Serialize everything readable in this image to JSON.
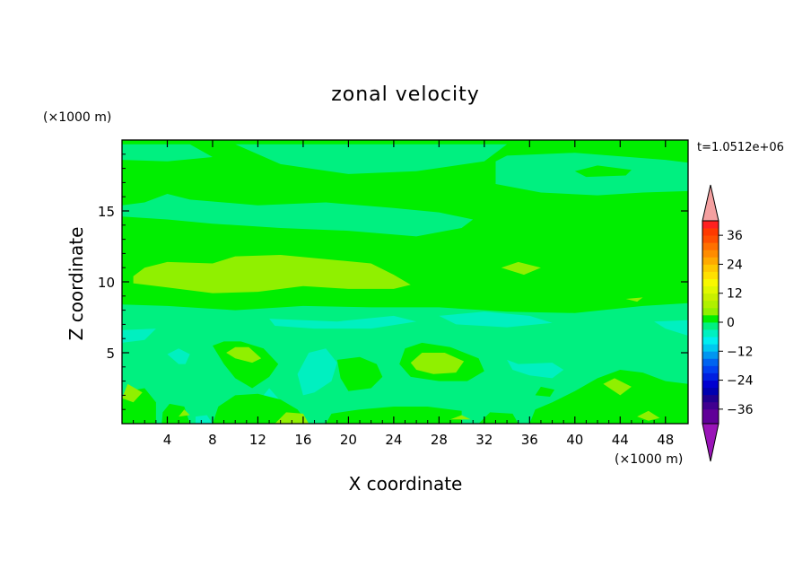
{
  "chart_data": {
    "type": "heatmap",
    "title": "zonal velocity",
    "xlabel": "X coordinate",
    "ylabel": "Z coordinate",
    "x_unit": "(×1000 m)",
    "y_unit": "(×1000 m)",
    "time_label": "t=1.0512e+06",
    "xlim": [
      0,
      50
    ],
    "ylim": [
      0,
      20
    ],
    "x_ticks": [
      4,
      8,
      12,
      16,
      20,
      24,
      28,
      32,
      36,
      40,
      44,
      48
    ],
    "y_ticks": [
      5,
      10,
      15
    ],
    "colorbar": {
      "min": -42,
      "max": 42,
      "step": 3,
      "tick_values": [
        36,
        24,
        12,
        0,
        -12,
        -24,
        -36
      ],
      "tick_labels": [
        "36",
        "24",
        "12",
        "0",
        "−12",
        "−24",
        "−36"
      ],
      "extend": "both"
    },
    "regions": [
      {
        "level": 0,
        "points": [
          [
            0,
            19.7
          ],
          [
            50,
            19.7
          ],
          [
            50,
            16
          ],
          [
            42,
            16.5
          ],
          [
            36,
            16.3
          ],
          [
            30,
            16.7
          ],
          [
            22,
            17.5
          ],
          [
            16,
            18.6
          ],
          [
            8,
            18.7
          ],
          [
            0,
            18.5
          ]
        ]
      },
      {
        "level": -3,
        "points": [
          [
            0,
            19.7
          ],
          [
            6,
            19.7
          ],
          [
            8,
            18.8
          ],
          [
            4,
            18.5
          ],
          [
            0,
            18.6
          ]
        ]
      },
      {
        "level": -3,
        "points": [
          [
            10,
            19.7
          ],
          [
            34,
            19.7
          ],
          [
            32,
            18.5
          ],
          [
            26,
            17.8
          ],
          [
            20,
            17.6
          ],
          [
            14,
            18.3
          ]
        ]
      },
      {
        "level": -3,
        "points": [
          [
            33,
            18.5
          ],
          [
            34,
            18.9
          ],
          [
            40,
            19.1
          ],
          [
            48,
            18.6
          ],
          [
            50,
            18.4
          ],
          [
            50,
            16.4
          ],
          [
            46,
            16.3
          ],
          [
            42,
            16.1
          ],
          [
            37,
            16.3
          ],
          [
            33,
            16.9
          ]
        ]
      },
      {
        "level": 0,
        "points": [
          [
            40,
            17.8
          ],
          [
            42,
            18.2
          ],
          [
            45,
            17.9
          ],
          [
            44.5,
            17.5
          ],
          [
            41,
            17.4
          ]
        ]
      },
      {
        "level": -3,
        "points": [
          [
            0,
            14.6
          ],
          [
            0,
            15.4
          ],
          [
            2,
            15.6
          ],
          [
            4,
            16.2
          ],
          [
            6,
            15.8
          ],
          [
            12,
            15.4
          ],
          [
            18,
            15.6
          ],
          [
            24,
            15.2
          ],
          [
            28,
            14.9
          ],
          [
            31,
            14.4
          ],
          [
            30,
            13.8
          ],
          [
            26,
            13.2
          ],
          [
            20,
            13.6
          ],
          [
            14,
            13.8
          ],
          [
            8,
            14.1
          ],
          [
            4,
            14.4
          ]
        ]
      },
      {
        "level": 3,
        "points": [
          [
            1,
            10.4
          ],
          [
            2,
            11
          ],
          [
            4,
            11.4
          ],
          [
            8,
            11.3
          ],
          [
            10,
            11.8
          ],
          [
            14,
            11.9
          ],
          [
            18,
            11.6
          ],
          [
            22,
            11.3
          ],
          [
            24,
            10.5
          ],
          [
            25.5,
            9.8
          ],
          [
            24,
            9.5
          ],
          [
            20,
            9.5
          ],
          [
            16,
            9.7
          ],
          [
            12,
            9.3
          ],
          [
            8,
            9.2
          ],
          [
            4,
            9.6
          ],
          [
            1,
            9.9
          ]
        ]
      },
      {
        "level": 3,
        "points": [
          [
            33.5,
            11
          ],
          [
            35,
            11.4
          ],
          [
            37,
            11
          ],
          [
            35.5,
            10.5
          ]
        ]
      },
      {
        "level": 3,
        "points": [
          [
            44.5,
            8.8
          ],
          [
            46,
            8.9
          ],
          [
            45.5,
            8.6
          ]
        ]
      },
      {
        "level": -3,
        "points": [
          [
            0,
            0
          ],
          [
            50,
            0
          ],
          [
            50,
            8.5
          ],
          [
            46,
            8.3
          ],
          [
            40,
            7.8
          ],
          [
            34,
            7.9
          ],
          [
            28,
            8.2
          ],
          [
            22,
            8.2
          ],
          [
            16,
            8.3
          ],
          [
            10,
            8.0
          ],
          [
            4,
            8.3
          ],
          [
            0,
            8.4
          ]
        ]
      },
      {
        "level": -6,
        "points": [
          [
            13,
            7.4
          ],
          [
            19,
            7.2
          ],
          [
            24,
            7.6
          ],
          [
            26,
            7.2
          ],
          [
            22,
            6.7
          ],
          [
            17,
            6.7
          ],
          [
            13.5,
            6.9
          ]
        ]
      },
      {
        "level": -6,
        "points": [
          [
            28,
            7.6
          ],
          [
            32,
            7.9
          ],
          [
            36,
            7.6
          ],
          [
            38,
            7.1
          ],
          [
            34,
            6.8
          ],
          [
            29.5,
            7
          ]
        ]
      },
      {
        "level": -6,
        "points": [
          [
            47,
            7.2
          ],
          [
            50,
            7.3
          ],
          [
            50,
            6.2
          ],
          [
            48,
            6.7
          ]
        ]
      },
      {
        "level": -6,
        "points": [
          [
            0,
            5.7
          ],
          [
            0,
            6.6
          ],
          [
            3,
            6.7
          ],
          [
            2,
            5.9
          ]
        ]
      },
      {
        "level": -6,
        "points": [
          [
            5,
            4.2
          ],
          [
            4,
            4.9
          ],
          [
            5,
            5.3
          ],
          [
            6,
            4.9
          ],
          [
            5.6,
            4.2
          ]
        ]
      },
      {
        "level": -6,
        "points": [
          [
            16,
            2
          ],
          [
            15.5,
            3.5
          ],
          [
            16.5,
            5
          ],
          [
            18,
            5.3
          ],
          [
            19,
            4.3
          ],
          [
            18.5,
            3
          ],
          [
            17,
            2.2
          ]
        ]
      },
      {
        "level": -6,
        "points": [
          [
            34,
            4.5
          ],
          [
            35,
            4.2
          ],
          [
            38,
            4.3
          ],
          [
            39,
            3.8
          ],
          [
            38,
            3.2
          ],
          [
            36,
            3.4
          ],
          [
            34.5,
            3.8
          ]
        ]
      },
      {
        "level": -6,
        "points": [
          [
            12,
            1.5
          ],
          [
            13,
            2.5
          ],
          [
            14,
            1.6
          ],
          [
            13,
            1
          ]
        ]
      },
      {
        "level": -6,
        "points": [
          [
            6.5,
            0
          ],
          [
            8,
            0
          ],
          [
            7.5,
            0.6
          ],
          [
            6.5,
            0.5
          ]
        ]
      },
      {
        "level": 0,
        "points": [
          [
            0,
            0
          ],
          [
            3,
            0
          ],
          [
            3,
            1.5
          ],
          [
            2,
            2.5
          ],
          [
            0.5,
            2.3
          ],
          [
            0,
            1.8
          ]
        ]
      },
      {
        "level": 0,
        "points": [
          [
            3.5,
            0
          ],
          [
            6,
            0
          ],
          [
            5.5,
            1.2
          ],
          [
            4.2,
            1.4
          ],
          [
            3.6,
            0.8
          ]
        ]
      },
      {
        "level": 0,
        "points": [
          [
            8,
            0
          ],
          [
            16.5,
            0
          ],
          [
            15.5,
            1
          ],
          [
            14,
            1.7
          ],
          [
            12,
            2.1
          ],
          [
            10,
            2
          ],
          [
            8.5,
            1.2
          ]
        ]
      },
      {
        "level": 0,
        "points": [
          [
            8,
            5.5
          ],
          [
            9,
            4.2
          ],
          [
            10,
            3.2
          ],
          [
            11.5,
            2.5
          ],
          [
            13,
            3.3
          ],
          [
            13.8,
            4.2
          ],
          [
            12.5,
            5.3
          ],
          [
            10.5,
            5.8
          ],
          [
            9,
            5.8
          ]
        ]
      },
      {
        "level": 0,
        "points": [
          [
            19,
            4.5
          ],
          [
            19.3,
            3.2
          ],
          [
            20,
            2.3
          ],
          [
            22,
            2.5
          ],
          [
            23,
            3.3
          ],
          [
            22.5,
            4.2
          ],
          [
            21,
            4.7
          ]
        ]
      },
      {
        "level": 0,
        "points": [
          [
            24.5,
            4.2
          ],
          [
            25,
            5.3
          ],
          [
            26.5,
            5.7
          ],
          [
            29,
            5.4
          ],
          [
            31.5,
            4.6
          ],
          [
            32,
            3.7
          ],
          [
            30.5,
            3
          ],
          [
            28,
            3
          ],
          [
            25.5,
            3.3
          ]
        ]
      },
      {
        "level": 0,
        "points": [
          [
            18,
            0
          ],
          [
            30,
            0
          ],
          [
            30,
            0.9
          ],
          [
            27,
            1.2
          ],
          [
            24,
            1.2
          ],
          [
            21,
            1
          ],
          [
            18.5,
            0.7
          ]
        ]
      },
      {
        "level": 0,
        "points": [
          [
            31.5,
            0
          ],
          [
            35,
            0
          ],
          [
            34.5,
            0.7
          ],
          [
            32.5,
            0.8
          ]
        ]
      },
      {
        "level": 0,
        "points": [
          [
            36,
            0
          ],
          [
            50,
            0
          ],
          [
            50,
            2.8
          ],
          [
            48,
            3
          ],
          [
            46,
            3.6
          ],
          [
            44,
            3.8
          ],
          [
            42,
            3.2
          ],
          [
            40,
            2.3
          ],
          [
            38,
            1.5
          ],
          [
            36.5,
            1
          ]
        ]
      },
      {
        "level": 0,
        "points": [
          [
            36.5,
            2
          ],
          [
            37,
            2.6
          ],
          [
            38.2,
            2.4
          ],
          [
            37.8,
            1.9
          ]
        ]
      },
      {
        "level": 3,
        "points": [
          [
            0,
            1.8
          ],
          [
            0.5,
            2.8
          ],
          [
            1.8,
            2.2
          ],
          [
            1,
            1.5
          ]
        ]
      },
      {
        "level": 3,
        "points": [
          [
            9.2,
            5
          ],
          [
            10,
            4.6
          ],
          [
            11.5,
            4.3
          ],
          [
            12.3,
            4.6
          ],
          [
            11.2,
            5.4
          ],
          [
            10,
            5.4
          ]
        ]
      },
      {
        "level": 3,
        "points": [
          [
            13.5,
            0
          ],
          [
            16.5,
            0
          ],
          [
            16,
            0.7
          ],
          [
            14.5,
            0.8
          ]
        ]
      },
      {
        "level": 3,
        "points": [
          [
            25.5,
            4.3
          ],
          [
            26.5,
            5
          ],
          [
            28.5,
            5
          ],
          [
            30.2,
            4.4
          ],
          [
            29.5,
            3.6
          ],
          [
            27.5,
            3.5
          ],
          [
            26,
            3.8
          ]
        ]
      },
      {
        "level": 3,
        "points": [
          [
            42.5,
            2.8
          ],
          [
            43.5,
            3.2
          ],
          [
            45,
            2.6
          ],
          [
            44,
            2
          ]
        ]
      },
      {
        "level": 3,
        "points": [
          [
            45.5,
            0.5
          ],
          [
            46.5,
            0.9
          ],
          [
            47.5,
            0.4
          ],
          [
            46.5,
            0.2
          ]
        ]
      },
      {
        "level": 3,
        "points": [
          [
            5,
            0.5
          ],
          [
            5.5,
            1
          ],
          [
            6,
            0.6
          ]
        ]
      },
      {
        "level": 3,
        "points": [
          [
            29,
            0.3
          ],
          [
            30,
            0.6
          ],
          [
            30.8,
            0.3
          ]
        ]
      }
    ]
  },
  "colors": {
    "frame": "#000000",
    "background": "#ffffff",
    "arrow_top": "#f4a0a0",
    "arrow_bottom": "#9a14b8"
  }
}
